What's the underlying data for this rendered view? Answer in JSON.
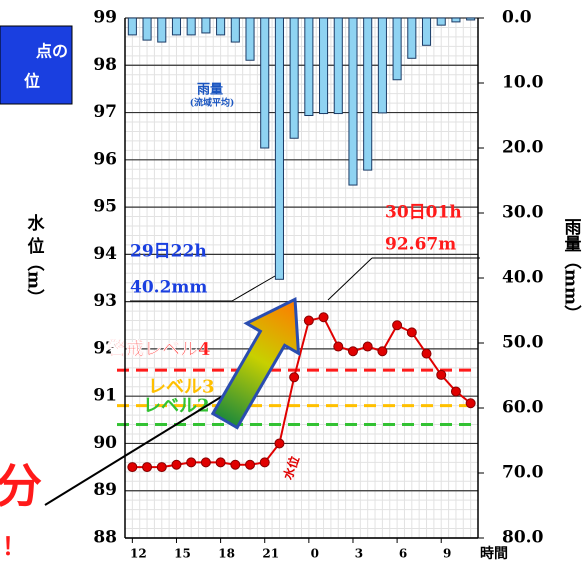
{
  "chart_data": {
    "type": "combo",
    "panel_text": [
      "点の",
      "位"
    ],
    "y_label": "水 位（m）",
    "y2_label": "雨量（mm）",
    "x_label": "時間",
    "x": [
      12,
      13,
      14,
      15,
      16,
      17,
      18,
      19,
      20,
      21,
      22,
      23,
      24,
      25,
      26,
      27,
      28,
      29,
      30,
      31,
      32,
      33,
      34,
      35
    ],
    "xlim": [
      11.5,
      35.5
    ],
    "xticks": [
      12,
      15,
      18,
      21,
      {
        "value": 24,
        "label": "0"
      },
      {
        "value": 27,
        "label": "3"
      },
      {
        "value": 30,
        "label": "6"
      },
      {
        "value": 33,
        "label": "9"
      }
    ],
    "ylim": [
      88,
      99
    ],
    "yticks": [
      88,
      89,
      90,
      91,
      92,
      93,
      94,
      95,
      96,
      97,
      98,
      99
    ],
    "y2lim": [
      0,
      80
    ],
    "y2_inverted": true,
    "y2ticks": [
      {
        "value": 0,
        "label": "0.0"
      },
      {
        "value": 10,
        "label": "10.0"
      },
      {
        "value": 20,
        "label": "20.0"
      },
      {
        "value": 30,
        "label": "30.0"
      },
      {
        "value": 40,
        "label": "40.0"
      },
      {
        "value": 50,
        "label": "50.0"
      },
      {
        "value": 60,
        "label": "60.0"
      },
      {
        "value": 70,
        "label": "70.0"
      },
      {
        "value": 80,
        "label": "80.0"
      }
    ],
    "grid": true,
    "series": [
      {
        "name": "雨量",
        "sub_name": "(流域平均)",
        "type": "bar",
        "axis": "y2",
        "color": "#8fd3f2",
        "values": [
          2.6,
          3.4,
          3.7,
          2.6,
          2.6,
          2.3,
          2.6,
          3.7,
          6.5,
          20.0,
          40.2,
          18.5,
          15.0,
          14.7,
          14.7,
          25.7,
          23.4,
          14.6,
          9.5,
          6.2,
          4.2,
          1.1,
          0.6,
          0.3
        ]
      },
      {
        "name": "水位",
        "type": "line",
        "axis": "y",
        "color": "#e00000",
        "values": [
          89.5,
          89.5,
          89.5,
          89.55,
          89.6,
          89.6,
          89.6,
          89.55,
          89.55,
          89.6,
          90.0,
          91.4,
          92.6,
          92.67,
          92.05,
          91.95,
          92.05,
          91.95,
          92.5,
          92.35,
          91.9,
          91.45,
          91.1,
          90.85
        ]
      }
    ],
    "reference_lines": [
      {
        "label": "警戒レベル4",
        "value": 91.55,
        "color": "#ff1a1a"
      },
      {
        "label": "レベル3",
        "value": 90.8,
        "color": "#ffc000"
      },
      {
        "label": "レベル2",
        "value": 90.4,
        "color": "#33c233"
      }
    ],
    "annotations": [
      {
        "lines": [
          "29日22h",
          "40.2mm"
        ],
        "color": "#1a3fe0"
      },
      {
        "lines": [
          "30日01h",
          "92.67m"
        ],
        "color": "#ff1a1a"
      }
    ],
    "callout": [
      "分",
      "！"
    ]
  }
}
